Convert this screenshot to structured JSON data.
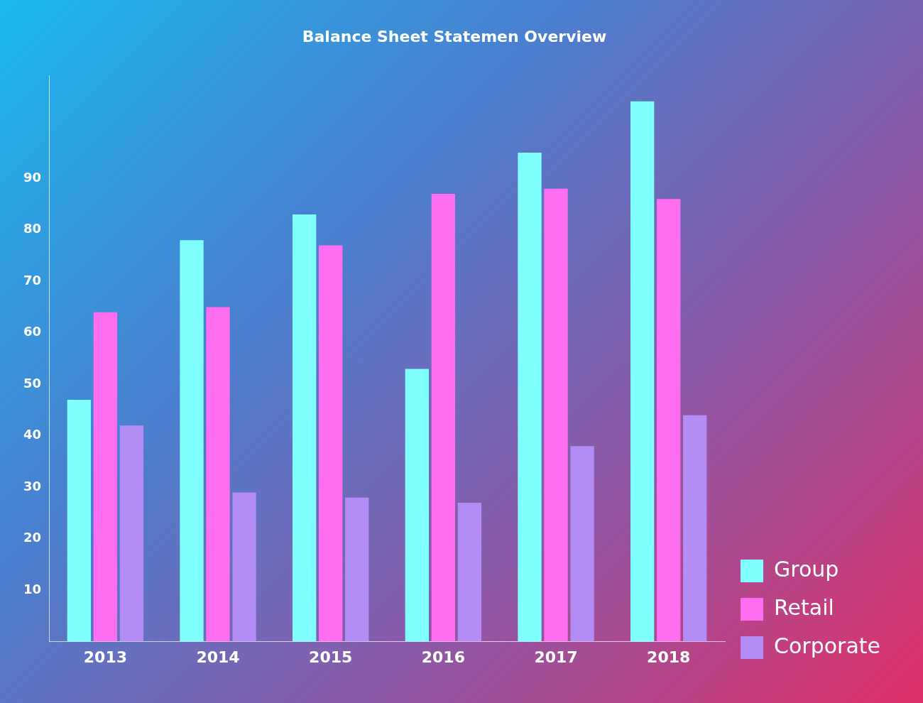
{
  "chart_data": {
    "type": "bar",
    "title": "Balance Sheet Statemen Overview",
    "categories": [
      "2013",
      "2014",
      "2015",
      "2016",
      "2017",
      "2018"
    ],
    "series": [
      {
        "name": "Group",
        "color": "#80ffff",
        "values": [
          47,
          78,
          83,
          53,
          95,
          105
        ]
      },
      {
        "name": "Retail",
        "color": "#ff6ef0",
        "values": [
          64,
          65,
          77,
          87,
          88,
          86
        ]
      },
      {
        "name": "Corporate",
        "color": "#b48cf5",
        "values": [
          42,
          29,
          28,
          27,
          38,
          44
        ]
      }
    ],
    "ylim": [
      0,
      110
    ],
    "yticks": [
      10,
      20,
      30,
      40,
      50,
      60,
      70,
      80,
      90
    ],
    "grid": false,
    "legend": "lower right"
  }
}
